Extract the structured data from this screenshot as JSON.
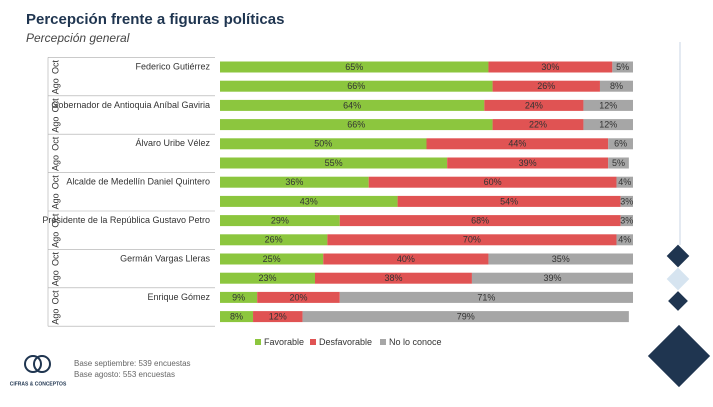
{
  "chart_data": {
    "type": "stacked-bar-horizontal",
    "title": "Percepción frente a figuras políticas",
    "subtitle": "Percepción general",
    "categories": [
      "Federico Gutiérrez",
      null,
      "Gobernador de Antioquia Aníbal Gaviria",
      null,
      "Álvaro Uribe Vélez",
      null,
      "Alcalde de Medellín Daniel Quintero",
      null,
      "Presidente de la República Gustavo Petro",
      null,
      "Germán Vargas Lleras",
      null,
      "Enrique Gómez",
      null
    ],
    "periods": [
      "Oct",
      "Ago",
      "Oct",
      "Ago",
      "Oct",
      "Ago",
      "Oct",
      "Ago",
      "Oct",
      "Ago",
      "Oct",
      "Ago",
      "Oct",
      "Ago"
    ],
    "xlim": [
      0,
      100
    ],
    "series": [
      {
        "name": "Favorable",
        "color": "#8cc63e",
        "values": [
          65,
          66,
          64,
          66,
          50,
          55,
          36,
          43,
          29,
          26,
          25,
          23,
          9,
          8
        ],
        "value_labels": [
          "65%",
          "66%",
          "64%",
          "66%",
          "50%",
          "55%",
          "36%",
          "43%",
          "29%",
          "26%",
          "25%",
          "23%",
          "9%",
          "8%"
        ]
      },
      {
        "name": "Desfavorable",
        "color": "#e05353",
        "values": [
          30,
          26,
          24,
          22,
          44,
          39,
          60,
          54,
          68,
          70,
          40,
          38,
          20,
          12
        ],
        "value_labels": [
          "30%",
          "26%",
          "24%",
          "22%",
          "44%",
          "39%",
          "60%",
          "54%",
          "68%",
          "70%",
          "40%",
          "38%",
          "20%",
          "12%"
        ]
      },
      {
        "name": "No lo conoce",
        "color": "#a6a6a6",
        "values": [
          5,
          8,
          12,
          12,
          6,
          5,
          4,
          3,
          3,
          4,
          35,
          39,
          71,
          79
        ],
        "value_labels": [
          "5%",
          "8%",
          "12%",
          "12%",
          "6%",
          "5%",
          "4%",
          "3%",
          "3%",
          "4%",
          "35%",
          "39%",
          "71%",
          "79%"
        ]
      }
    ],
    "notes": [
      "Base septiembre: 539 encuestas",
      "Base agosto: 553 encuestas"
    ],
    "logo": "CIFRAS & CONCEPTOS"
  }
}
